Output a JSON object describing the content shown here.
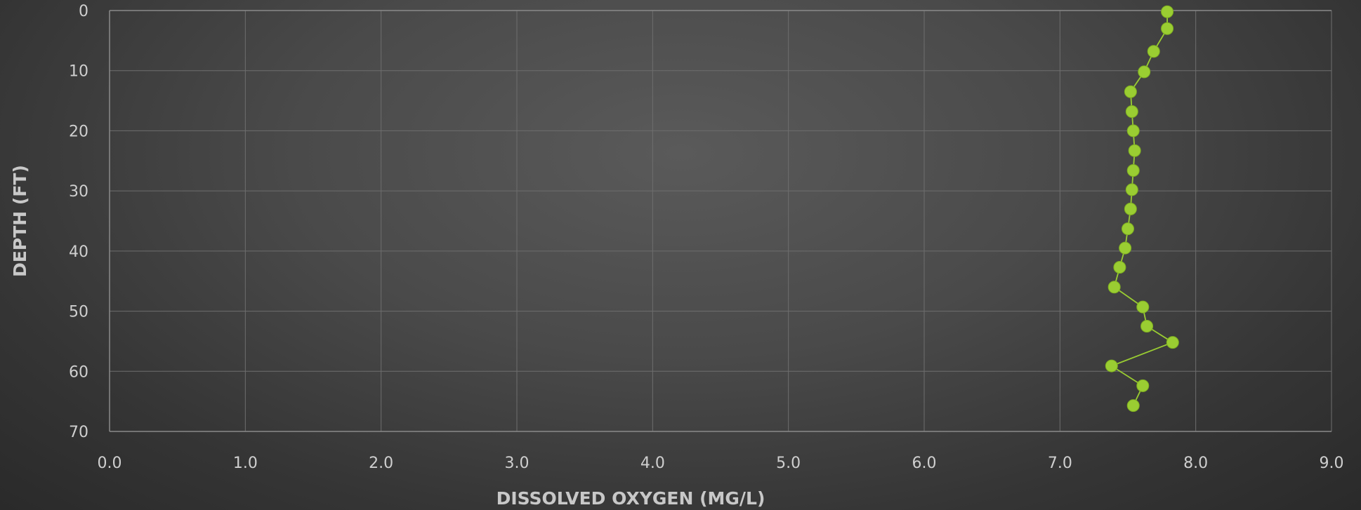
{
  "chart_data": {
    "type": "line",
    "title": "",
    "xlabel": "DISSOLVED OXYGEN (MG/L)",
    "ylabel": "DEPTH (FT)",
    "xlim": [
      0,
      9
    ],
    "ylim": [
      0,
      70
    ],
    "y_inverted": true,
    "grid": true,
    "x_ticks": [
      "0.0",
      "1.0",
      "2.0",
      "3.0",
      "4.0",
      "5.0",
      "6.0",
      "7.0",
      "8.0",
      "9.0"
    ],
    "y_ticks": [
      "0",
      "10",
      "20",
      "30",
      "40",
      "50",
      "60",
      "70"
    ],
    "series": [
      {
        "color": "#9acd32",
        "points": [
          {
            "x": 7.79,
            "y": 0.2
          },
          {
            "x": 7.79,
            "y": 3.0
          },
          {
            "x": 7.69,
            "y": 6.8
          },
          {
            "x": 7.62,
            "y": 10.2
          },
          {
            "x": 7.52,
            "y": 13.5
          },
          {
            "x": 7.53,
            "y": 16.8
          },
          {
            "x": 7.54,
            "y": 20.0
          },
          {
            "x": 7.55,
            "y": 23.3
          },
          {
            "x": 7.54,
            "y": 26.6
          },
          {
            "x": 7.53,
            "y": 29.8
          },
          {
            "x": 7.52,
            "y": 33.0
          },
          {
            "x": 7.5,
            "y": 36.3
          },
          {
            "x": 7.48,
            "y": 39.5
          },
          {
            "x": 7.44,
            "y": 42.7
          },
          {
            "x": 7.4,
            "y": 46.0
          },
          {
            "x": 7.61,
            "y": 49.3
          },
          {
            "x": 7.64,
            "y": 52.5
          },
          {
            "x": 7.83,
            "y": 55.2
          },
          {
            "x": 7.38,
            "y": 59.1
          },
          {
            "x": 7.61,
            "y": 62.4
          },
          {
            "x": 7.54,
            "y": 65.7
          }
        ]
      }
    ]
  }
}
